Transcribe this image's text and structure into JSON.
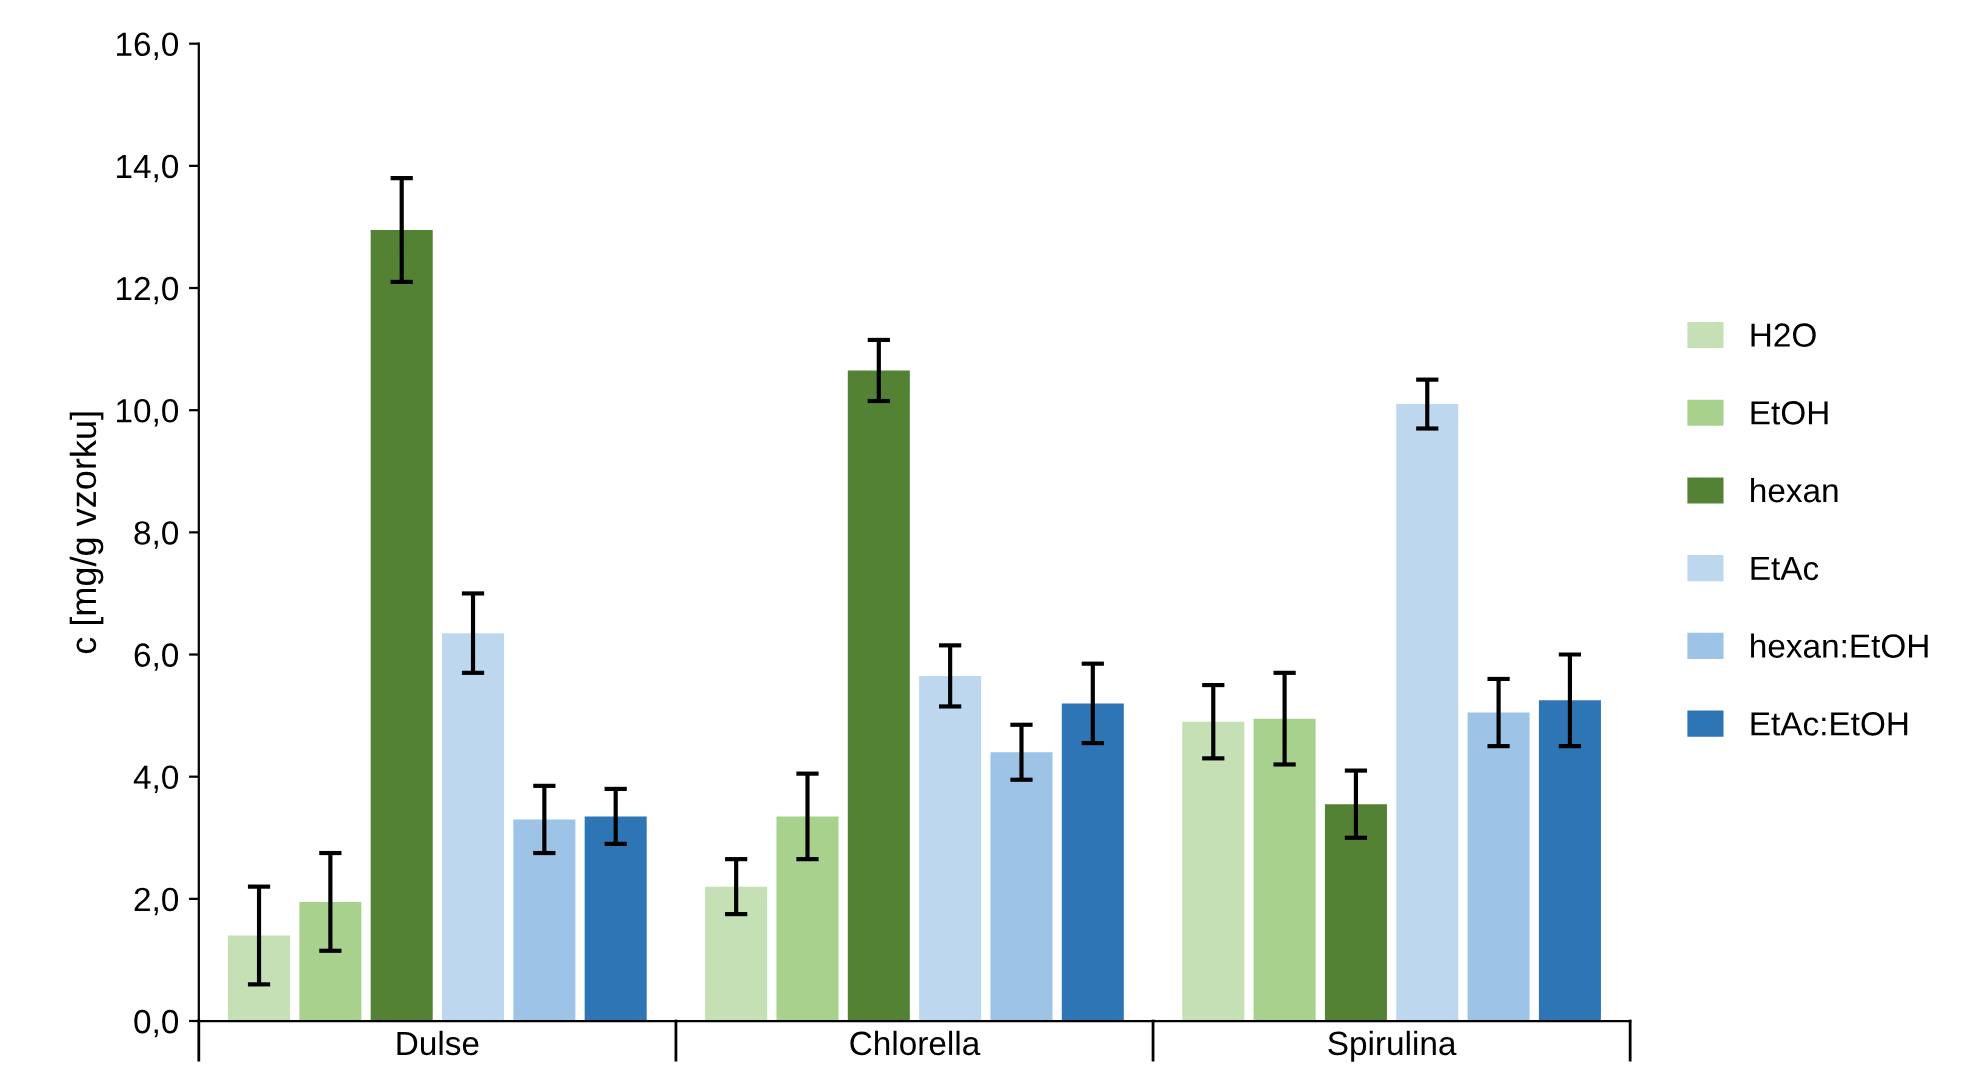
{
  "chart_data": {
    "type": "bar",
    "ylabel": "c [mg/g vzorku]",
    "categories": [
      "Dulse",
      "Chlorella",
      "Spirulina"
    ],
    "series": [
      {
        "name": "H2O",
        "color": "#c5e0b4",
        "values": [
          1.4,
          2.2,
          4.9
        ],
        "errors": [
          0.8,
          0.45,
          0.6
        ]
      },
      {
        "name": "EtOH",
        "color": "#a9d18e",
        "values": [
          1.95,
          3.35,
          4.95
        ],
        "errors": [
          0.8,
          0.7,
          0.75
        ]
      },
      {
        "name": "hexan",
        "color": "#548235",
        "values": [
          12.95,
          10.65,
          3.55
        ],
        "errors": [
          0.85,
          0.5,
          0.55
        ]
      },
      {
        "name": "EtAc",
        "color": "#bdd7ee",
        "values": [
          6.35,
          5.65,
          10.1
        ],
        "errors": [
          0.65,
          0.5,
          0.4
        ]
      },
      {
        "name": "hexan:EtOH",
        "color": "#9dc3e6",
        "values": [
          3.3,
          4.4,
          5.05
        ],
        "errors": [
          0.55,
          0.45,
          0.55
        ]
      },
      {
        "name": "EtAc:EtOH",
        "color": "#2e75b6",
        "values": [
          3.35,
          5.2,
          5.25
        ],
        "errors": [
          0.45,
          0.65,
          0.75
        ]
      }
    ],
    "ylim": [
      0,
      16
    ],
    "yticks": [
      {
        "value": 0,
        "label": "0,0"
      },
      {
        "value": 2,
        "label": "2,0"
      },
      {
        "value": 4,
        "label": "4,0"
      },
      {
        "value": 6,
        "label": "6,0"
      },
      {
        "value": 8,
        "label": "8,0"
      },
      {
        "value": 10,
        "label": "10,0"
      },
      {
        "value": 12,
        "label": "12,0"
      },
      {
        "value": 14,
        "label": "14,0"
      },
      {
        "value": 16,
        "label": "16,0"
      }
    ],
    "grid": false,
    "legend": "right"
  }
}
